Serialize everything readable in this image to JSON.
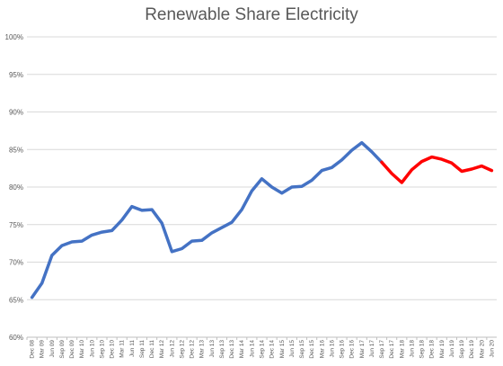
{
  "chart_data": {
    "type": "line",
    "title": "Renewable Share Electricity",
    "xlabel": "",
    "ylabel": "",
    "ylim": [
      60,
      100
    ],
    "y_ticks": [
      "60%",
      "65%",
      "70%",
      "75%",
      "80%",
      "85%",
      "90%",
      "95%",
      "100%"
    ],
    "grid": true,
    "legend": "none",
    "categories": [
      "Dec 08",
      "Mar 09",
      "Jun 09",
      "Sep 09",
      "Dec 09",
      "Mar 10",
      "Jun 10",
      "Sep 10",
      "Dec 10",
      "Mar 11",
      "Jun 11",
      "Sep 11",
      "Dec 11",
      "Mar 12",
      "Jun 12",
      "Sep 12",
      "Dec 12",
      "Mar 13",
      "Jun 13",
      "Sep 13",
      "Dec 13",
      "Mar 14",
      "Jun 14",
      "Sep 14",
      "Dec 14",
      "Mar 15",
      "Jun 15",
      "Sep 15",
      "Dec 15",
      "Mar 16",
      "Jun 16",
      "Sep 16",
      "Dec 16",
      "Mar 17",
      "Jun 17",
      "Sep 17",
      "Dec 17",
      "Mar 18",
      "Jun 18",
      "Sep 18",
      "Dec 18",
      "Mar 19",
      "Jun 19",
      "Sep 19",
      "Dec 19",
      "Mar 20",
      "Jun 20"
    ],
    "series": [
      {
        "color": "#4472c4",
        "values": [
          65.3,
          67.2,
          70.9,
          72.2,
          72.7,
          72.8,
          73.6,
          74.0,
          74.2,
          75.6,
          77.4,
          76.9,
          77.0,
          75.2,
          71.4,
          71.8,
          72.8,
          72.9,
          73.9,
          74.6,
          75.3,
          77.0,
          79.5,
          81.1,
          80.0,
          79.2,
          80.0,
          80.1,
          80.9,
          82.2,
          82.6,
          83.6,
          84.9,
          85.9,
          84.7,
          83.3,
          null,
          null,
          null,
          null,
          null,
          null,
          null,
          null,
          null,
          null,
          null
        ]
      },
      {
        "color": "#ff0000",
        "values": [
          null,
          null,
          null,
          null,
          null,
          null,
          null,
          null,
          null,
          null,
          null,
          null,
          null,
          null,
          null,
          null,
          null,
          null,
          null,
          null,
          null,
          null,
          null,
          null,
          null,
          null,
          null,
          null,
          null,
          null,
          null,
          null,
          null,
          null,
          null,
          83.3,
          81.8,
          80.6,
          82.3,
          83.4,
          84.0,
          83.7,
          83.2,
          82.1,
          82.4,
          82.8,
          82.2
        ]
      }
    ]
  }
}
